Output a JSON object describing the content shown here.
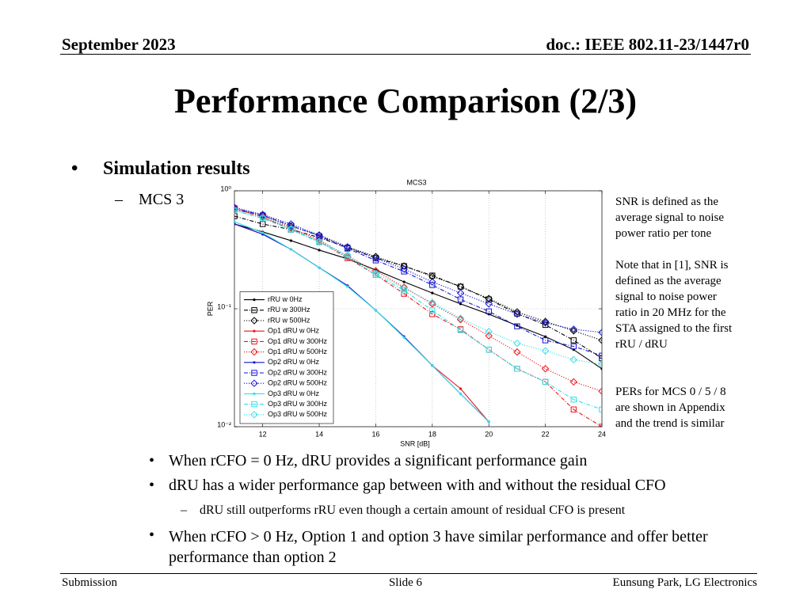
{
  "header": {
    "date": "September 2023",
    "doc": "doc.: IEEE 802.11-23/1447r0"
  },
  "title": "Performance Comparison (2/3)",
  "bullet": "Simulation results",
  "sub_bullet": "MCS 3",
  "notes": [
    [
      "SNR is defined as the",
      "average signal to noise",
      "power ratio per tone"
    ],
    [
      "Note that in [1], SNR is",
      "defined as the average",
      "signal to noise power",
      "ratio in 20 MHz for the",
      "STA assigned to the first",
      "rRU / dRU"
    ],
    [
      "PERs for MCS 0 / 5 / 8",
      "are shown in Appendix",
      "and the trend is similar"
    ]
  ],
  "findings": [
    {
      "text": "When rCFO = 0 Hz, dRU provides a significant performance gain"
    },
    {
      "text": "dRU has a wider performance gap between with and without the residual CFO",
      "sub": "dRU still outperforms rRU even though a certain amount of residual CFO is present"
    },
    {
      "text": "When rCFO > 0 Hz, Option 1 and option 3 have similar performance and offer better performance than option 2"
    }
  ],
  "footer": {
    "left": "Submission",
    "center": "Slide 6",
    "right": "Eunsung Park, LG Electronics"
  },
  "chart_data": {
    "type": "line",
    "title": "MCS3",
    "x_label": "SNR [dB]",
    "y_label": "PER",
    "x": [
      11,
      12,
      13,
      14,
      15,
      16,
      17,
      18,
      19,
      20,
      21,
      22,
      23,
      24
    ],
    "xlim": [
      11,
      24
    ],
    "xticks": [
      12,
      14,
      16,
      18,
      20,
      22,
      24
    ],
    "ylim": [
      0.01,
      1
    ],
    "y_scale": "log",
    "yticks": [
      {
        "value": 0.01,
        "label": "10⁻²"
      },
      {
        "value": 0.1,
        "label": "10⁻¹"
      },
      {
        "value": 1,
        "label": "10⁰"
      }
    ],
    "grid": true,
    "legend": "lower left",
    "series": [
      {
        "name": "rRU w 0Hz",
        "color": "#000000",
        "marker": "dot",
        "dash": "solid",
        "values": [
          0.523,
          0.448,
          0.378,
          0.314,
          0.265,
          0.213,
          0.169,
          0.136,
          0.11,
          0.09,
          0.072,
          0.058,
          0.045,
          0.031
        ]
      },
      {
        "name": "rRU w 300Hz",
        "color": "#000000",
        "marker": "square",
        "dash": "dashdot",
        "values": [
          0.61,
          0.523,
          0.469,
          0.402,
          0.329,
          0.269,
          0.23,
          0.191,
          0.154,
          0.12,
          0.091,
          0.073,
          0.054,
          0.038
        ]
      },
      {
        "name": "rRU w 500Hz",
        "color": "#000000",
        "marker": "diamond",
        "dash": "dotted",
        "values": [
          0.701,
          0.619,
          0.499,
          0.421,
          0.334,
          0.277,
          0.23,
          0.188,
          0.154,
          0.122,
          0.094,
          0.078,
          0.065,
          0.054
        ]
      },
      {
        "name": "Op1 dRU w 0Hz",
        "color": "#e8161b",
        "marker": "dot",
        "dash": "solid",
        "values": [
          0.523,
          0.428,
          0.319,
          0.223,
          0.157,
          0.097,
          0.058,
          0.033,
          0.021,
          0.011,
          null,
          null,
          null,
          null
        ]
      },
      {
        "name": "Op1 dRU w 300Hz",
        "color": "#e8161b",
        "marker": "square",
        "dash": "dashdot",
        "values": [
          0.701,
          0.601,
          0.469,
          0.372,
          0.269,
          0.194,
          0.134,
          0.09,
          0.067,
          0.045,
          0.031,
          0.024,
          0.014,
          0.01
        ]
      },
      {
        "name": "Op1 dRU w 500Hz",
        "color": "#e8161b",
        "marker": "diamond",
        "dash": "dotted",
        "values": [
          0.701,
          0.601,
          0.484,
          0.384,
          0.277,
          0.21,
          0.152,
          0.11,
          0.081,
          0.059,
          0.043,
          0.031,
          0.024,
          0.02
        ]
      },
      {
        "name": "Op2 dRU w 0Hz",
        "color": "#1414d2",
        "marker": "dot",
        "dash": "solid",
        "values": [
          0.523,
          0.428,
          0.319,
          0.223,
          0.157,
          0.097,
          0.058,
          0.033,
          0.019,
          0.011,
          null,
          null,
          null,
          null
        ]
      },
      {
        "name": "Op2 dRU w 300Hz",
        "color": "#1414d2",
        "marker": "square",
        "dash": "dashdot",
        "values": [
          0.711,
          0.619,
          0.507,
          0.414,
          0.324,
          0.257,
          0.207,
          0.159,
          0.12,
          0.095,
          0.071,
          0.054,
          0.048,
          0.04
        ]
      },
      {
        "name": "Op2 dRU w 500Hz",
        "color": "#1414d2",
        "marker": "diamond",
        "dash": "dotted",
        "values": [
          0.723,
          0.629,
          0.523,
          0.421,
          0.334,
          0.269,
          0.217,
          0.169,
          0.136,
          0.11,
          0.09,
          0.076,
          0.067,
          0.063
        ]
      },
      {
        "name": "Op3 dRU w 0Hz",
        "color": "#30e0e8",
        "marker": "dot",
        "dash": "solid",
        "values": [
          0.547,
          0.441,
          0.319,
          0.223,
          0.154,
          0.097,
          0.057,
          0.033,
          0.019,
          0.011,
          null,
          null,
          null,
          null
        ]
      },
      {
        "name": "Op3 dRU w 300Hz",
        "color": "#30e0e8",
        "marker": "square",
        "dash": "dashdot",
        "values": [
          0.679,
          0.582,
          0.469,
          0.366,
          0.277,
          0.194,
          0.143,
          0.097,
          0.066,
          0.045,
          0.031,
          0.024,
          0.017,
          0.014
        ]
      },
      {
        "name": "Op3 dRU w 500Hz",
        "color": "#30e0e8",
        "marker": "diamond",
        "dash": "dotted",
        "values": [
          0.679,
          0.591,
          0.476,
          0.372,
          0.286,
          0.2,
          0.149,
          0.113,
          0.083,
          0.064,
          0.051,
          0.044,
          0.037,
          0.034
        ]
      }
    ]
  }
}
